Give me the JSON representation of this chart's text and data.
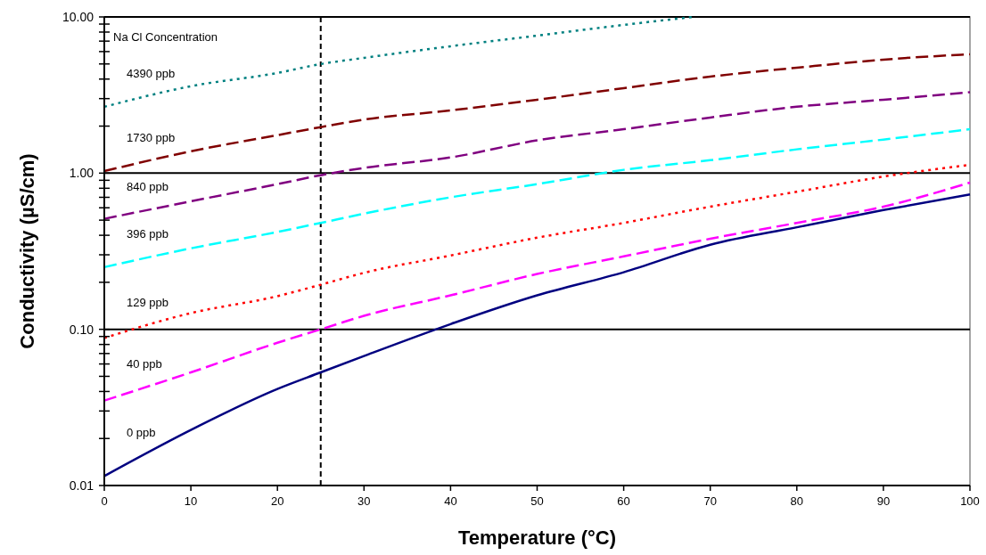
{
  "chart_data": {
    "type": "line",
    "xlabel": "Temperature (°C)",
    "ylabel": "Conductivity (µS/cm)",
    "legend_title": "Na Cl Concentration",
    "log": "y",
    "grid": "y",
    "marker": "none",
    "x": [
      0,
      10,
      20,
      25,
      30,
      40,
      50,
      60,
      70,
      80,
      90,
      100
    ],
    "xlim": [
      0,
      100
    ],
    "xticks": [
      0,
      10,
      20,
      30,
      40,
      50,
      60,
      70,
      80,
      90,
      100
    ],
    "ylim": [
      0.01,
      10
    ],
    "yticks": [
      {
        "value": 0.01,
        "label": "0.01"
      },
      {
        "value": 0.02,
        "label": null
      },
      {
        "value": 0.03,
        "label": null
      },
      {
        "value": 0.04,
        "label": null
      },
      {
        "value": 0.05,
        "label": null
      },
      {
        "value": 0.06,
        "label": null
      },
      {
        "value": 0.07,
        "label": null
      },
      {
        "value": 0.08,
        "label": null
      },
      {
        "value": 0.09,
        "label": null
      },
      {
        "value": 0.1,
        "label": "0.10"
      },
      {
        "value": 0.2,
        "label": null
      },
      {
        "value": 0.3,
        "label": null
      },
      {
        "value": 0.4,
        "label": null
      },
      {
        "value": 0.5,
        "label": null
      },
      {
        "value": 0.6,
        "label": null
      },
      {
        "value": 0.7,
        "label": null
      },
      {
        "value": 0.8,
        "label": null
      },
      {
        "value": 0.9,
        "label": null
      },
      {
        "value": 1,
        "label": "1.00"
      },
      {
        "value": 2,
        "label": null
      },
      {
        "value": 3,
        "label": null
      },
      {
        "value": 4,
        "label": null
      },
      {
        "value": 5,
        "label": null
      },
      {
        "value": 6,
        "label": null
      },
      {
        "value": 7,
        "label": null
      },
      {
        "value": 8,
        "label": null
      },
      {
        "value": 9,
        "label": null
      },
      {
        "value": 10,
        "label": "10.00"
      }
    ],
    "ref_lines": [
      {
        "axis": "x",
        "value": 25,
        "label": null,
        "color": "#000000",
        "line_style": "dashed"
      }
    ],
    "series": [
      {
        "name": "4390 ppb",
        "color": "#008080",
        "line_style": "dotted",
        "x": [
          0,
          10,
          20,
          25,
          30,
          40,
          50,
          60,
          68
        ],
        "values": [
          2.66,
          3.6,
          4.38,
          4.99,
          5.47,
          6.49,
          7.59,
          8.89,
          10
        ]
      },
      {
        "name": "1730 ppb",
        "color": "#800000",
        "line_style": "dashed",
        "values": [
          1.03,
          1.38,
          1.75,
          1.97,
          2.2,
          2.52,
          2.95,
          3.5,
          4.15,
          4.73,
          5.33,
          5.77
        ]
      },
      {
        "name": "840 ppb",
        "color": "#800080",
        "line_style": "dashed",
        "values": [
          0.51,
          0.66,
          0.85,
          0.97,
          1.08,
          1.26,
          1.62,
          1.91,
          2.27,
          2.66,
          2.95,
          3.3
        ]
      },
      {
        "name": "396 ppb",
        "color": "#00ffff",
        "line_style": "dashed",
        "values": [
          0.25,
          0.33,
          0.42,
          0.48,
          0.55,
          0.7,
          0.85,
          1.05,
          1.21,
          1.42,
          1.64,
          1.91
        ]
      },
      {
        "name": "129 ppb",
        "color": "#ff0000",
        "line_style": "dotted",
        "values": [
          0.088,
          0.127,
          0.163,
          0.193,
          0.23,
          0.297,
          0.386,
          0.48,
          0.61,
          0.76,
          0.95,
          1.13
        ]
      },
      {
        "name": "40 ppb",
        "color": "#ff00ff",
        "line_style": "dashed",
        "values": [
          0.035,
          0.053,
          0.082,
          0.1,
          0.122,
          0.165,
          0.226,
          0.293,
          0.38,
          0.48,
          0.61,
          0.87
        ]
      },
      {
        "name": "0 ppb",
        "color": "#000080",
        "line_style": "solid",
        "values": [
          0.0115,
          0.0227,
          0.0415,
          0.053,
          0.0675,
          0.108,
          0.165,
          0.232,
          0.348,
          0.45,
          0.58,
          0.73
        ]
      }
    ]
  }
}
